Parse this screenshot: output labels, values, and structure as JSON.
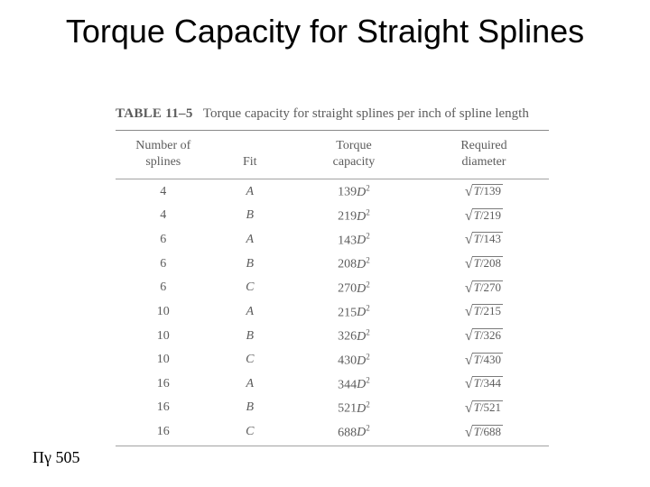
{
  "title": "Torque Capacity for Straight Splines",
  "page_ref": "Πγ 505",
  "caption_label": "TABLE 11–5",
  "caption_text": "Torque capacity for straight splines per inch of spline length",
  "columns": {
    "num": "Number of\nsplines",
    "fit": "Fit",
    "torque": "Torque\ncapacity",
    "diam": "Required\ndiameter"
  },
  "rows": [
    {
      "n": "4",
      "fit": "A",
      "tc_coef": "139",
      "rd_den": "139"
    },
    {
      "n": "4",
      "fit": "B",
      "tc_coef": "219",
      "rd_den": "219"
    },
    {
      "n": "6",
      "fit": "A",
      "tc_coef": "143",
      "rd_den": "143"
    },
    {
      "n": "6",
      "fit": "B",
      "tc_coef": "208",
      "rd_den": "208"
    },
    {
      "n": "6",
      "fit": "C",
      "tc_coef": "270",
      "rd_den": "270"
    },
    {
      "n": "10",
      "fit": "A",
      "tc_coef": "215",
      "rd_den": "215"
    },
    {
      "n": "10",
      "fit": "B",
      "tc_coef": "326",
      "rd_den": "326"
    },
    {
      "n": "10",
      "fit": "C",
      "tc_coef": "430",
      "rd_den": "430"
    },
    {
      "n": "16",
      "fit": "A",
      "tc_coef": "344",
      "rd_den": "344"
    },
    {
      "n": "16",
      "fit": "B",
      "tc_coef": "521",
      "rd_den": "521"
    },
    {
      "n": "16",
      "fit": "C",
      "tc_coef": "688",
      "rd_den": "688"
    }
  ],
  "style": {
    "bg": "#ffffff",
    "title_color": "#000000",
    "text_color": "#5c5c5c",
    "rule_color": "#8a8a8a",
    "title_fontsize": 36,
    "table_fontsize": 14
  }
}
